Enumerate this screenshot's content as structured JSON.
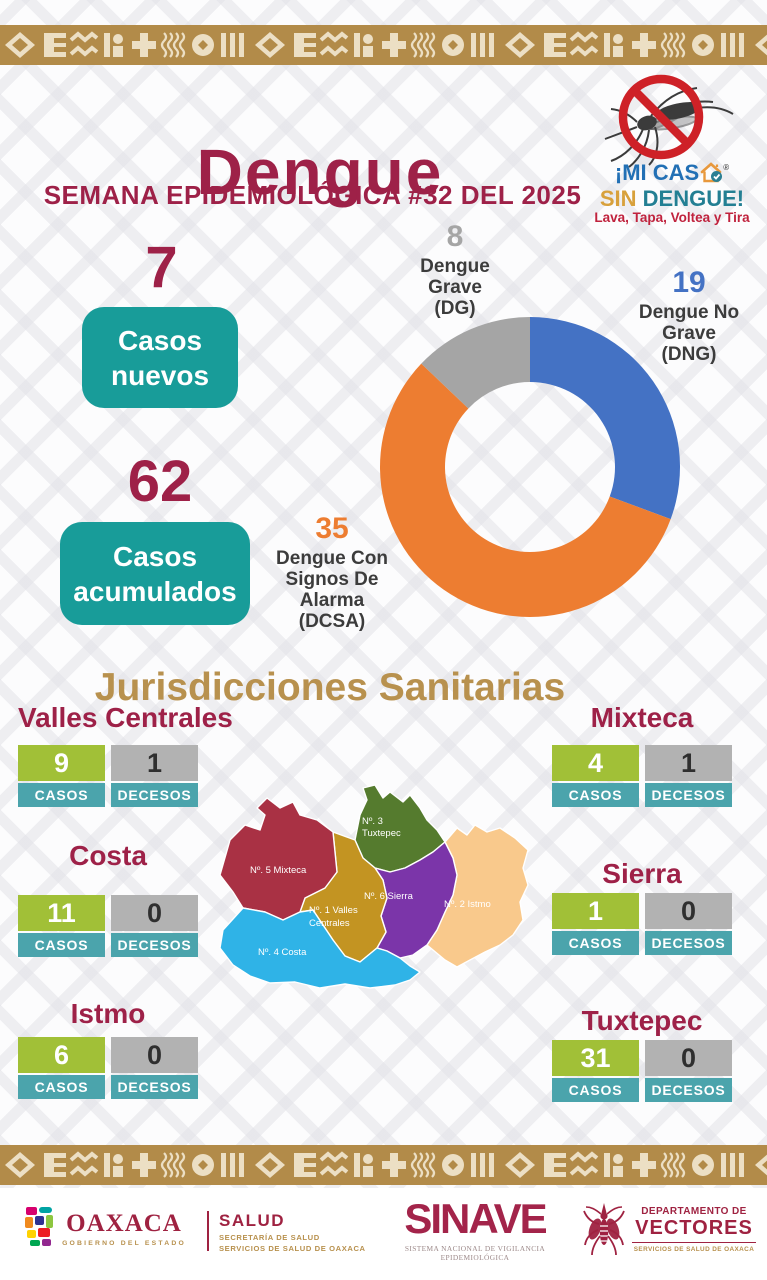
{
  "header": {
    "title": "Dengue",
    "subtitle": "SEMANA EPIDEMIOLÓGICA #32 DEL 2025"
  },
  "campaign": {
    "line1": "¡MI CAS",
    "registered": "®",
    "line2_word1": "SIN",
    "line2_word2": "DENGUE!",
    "tagline": "Lava, Tapa, Voltea y Tira"
  },
  "stats": {
    "new": {
      "value": "7",
      "label": "Casos nuevos"
    },
    "cumulative": {
      "value": "62",
      "label": "Casos acumulados"
    }
  },
  "chart_data": [
    {
      "type": "pie",
      "variant": "donut",
      "start_angle_deg": 0,
      "direction": "clockwise",
      "total": 62,
      "segments": [
        {
          "name": "Dengue No Grave",
          "abbr": "(DNG)",
          "value": 19,
          "color": "#4472c4"
        },
        {
          "name": "Dengue Con Signos De Alarma",
          "abbr": "(DCSA)",
          "value": 35,
          "color": "#ed7d31"
        },
        {
          "name": "Dengue Grave",
          "abbr": "(DG)",
          "value": 8,
          "color": "#a5a5a5"
        }
      ]
    },
    {
      "type": "table",
      "columns": [
        "Jurisdicción",
        "Casos",
        "Decesos"
      ],
      "rows": [
        [
          "Valles Centrales",
          9,
          1
        ],
        [
          "Mixteca",
          4,
          1
        ],
        [
          "Costa",
          11,
          0
        ],
        [
          "Sierra",
          1,
          0
        ],
        [
          "Istmo",
          6,
          0
        ],
        [
          "Tuxtepec",
          31,
          0
        ]
      ]
    }
  ],
  "jurisdictions_heading": "Jurisdicciones Sanitarias",
  "labels": {
    "cases": "CASOS",
    "deaths": "DECESOS"
  },
  "jurisdictions": [
    {
      "name": "Valles Centrales",
      "cases": "9",
      "deaths": "1"
    },
    {
      "name": "Mixteca",
      "cases": "4",
      "deaths": "1"
    },
    {
      "name": "Costa",
      "cases": "11",
      "deaths": "0"
    },
    {
      "name": "Sierra",
      "cases": "1",
      "deaths": "0"
    },
    {
      "name": "Istmo",
      "cases": "6",
      "deaths": "0"
    },
    {
      "name": "Tuxtepec",
      "cases": "31",
      "deaths": "0"
    }
  ],
  "map": {
    "regions": [
      {
        "label": "Nº. 5 Mixteca",
        "color": "#a93144"
      },
      {
        "label": "Nº. 3",
        "label2": "Tuxtepec",
        "color": "#557b2e"
      },
      {
        "label": "Nº. 1 Valles",
        "label2": "Centrales",
        "color": "#c39422"
      },
      {
        "label": "Nº. 6 Sierra",
        "color": "#7b35a9"
      },
      {
        "label": "Nº. 2 Istmo",
        "color": "#f9c98c"
      },
      {
        "label": "Nº. 4 Costa",
        "color": "#2fb3e7"
      }
    ]
  },
  "footer": {
    "oaxaca": {
      "name": "OAXACA",
      "tagline": "GOBIERNO DEL ESTADO"
    },
    "salud": {
      "name": "SALUD",
      "line1": "SECRETARÍA DE SALUD",
      "line2": "SERVICIOS DE SALUD DE OAXACA"
    },
    "sinave": {
      "name": "SINAVE",
      "tagline": "SISTEMA NACIONAL DE VIGILANCIA EPIDEMIOLÓGICA"
    },
    "vectores": {
      "line1": "DEPARTAMENTO DE",
      "name": "VECTORES",
      "tagline": "SERVICIOS DE SALUD DE OAXACA"
    }
  },
  "colors": {
    "maroon": "#9e2148",
    "gold": "#b8914e",
    "border_gold": "#b28b49",
    "teal_badge": "#189c99",
    "teal_label": "#4ba4ac",
    "green_box": "#a1c037",
    "gray_box": "#b2b2b2",
    "chart_blue": "#4472c4",
    "chart_orange": "#ed7d31",
    "chart_gray": "#a5a5a5"
  }
}
